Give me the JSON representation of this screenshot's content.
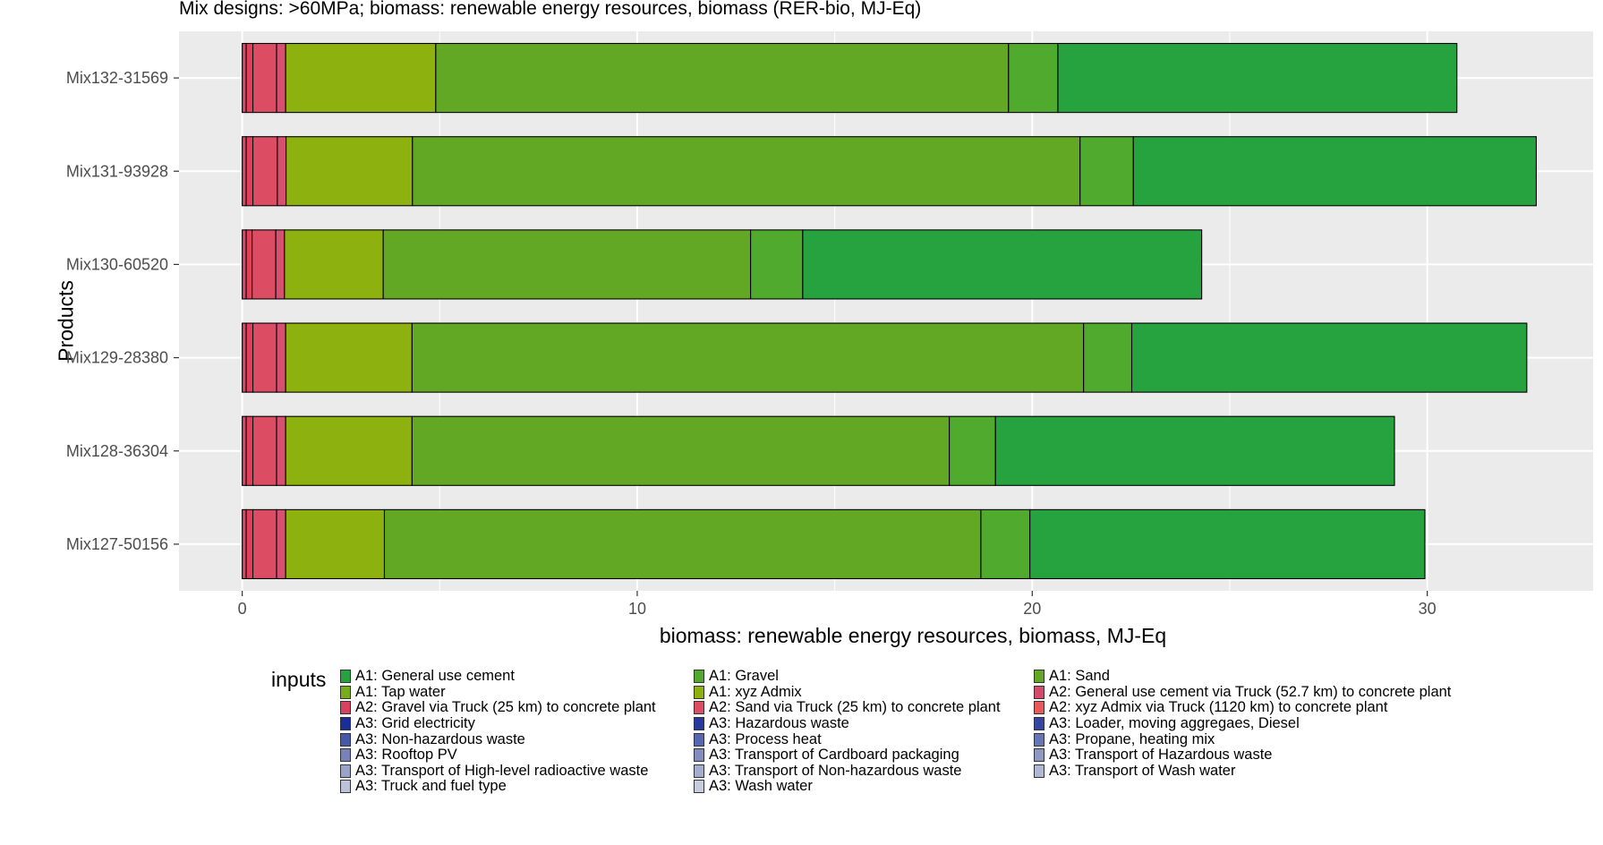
{
  "chart_data": {
    "type": "bar",
    "orientation": "horizontal",
    "stacked": true,
    "title": "Mix designs: >60MPa; biomass: renewable energy resources, biomass (RER-bio, MJ-Eq)",
    "xlabel": "biomass: renewable energy resources, biomass, MJ-Eq",
    "ylabel": "Products",
    "xlim": [
      -1.6,
      34.2
    ],
    "xticks": [
      0,
      10,
      20,
      30
    ],
    "categories": [
      "Mix132-31569",
      "Mix131-93928",
      "Mix130-60520",
      "Mix129-28380",
      "Mix128-36304",
      "Mix127-50156"
    ],
    "grid": true,
    "legend_position": "bottom",
    "legend_title": "inputs",
    "series": [
      {
        "name": "A2: General use cement via Truck (52.7 km) to concrete plant",
        "color": "#d44a6a",
        "values": [
          0.1,
          0.1,
          0.1,
          0.1,
          0.1,
          0.1
        ]
      },
      {
        "name": "A2: Gravel via Truck (25 km) to concrete plant",
        "color": "#e0405a",
        "values": [
          0.17,
          0.17,
          0.15,
          0.17,
          0.17,
          0.17
        ]
      },
      {
        "name": "A2: Sand via Truck (25 km) to concrete plant",
        "color": "#dc4d64",
        "values": [
          0.6,
          0.62,
          0.6,
          0.6,
          0.6,
          0.6
        ]
      },
      {
        "name": "A2: xyz Admix via Truck (1120 km) to concrete plant",
        "color": "#d85070",
        "values": [
          0.23,
          0.22,
          0.22,
          0.23,
          0.23,
          0.23
        ]
      },
      {
        "name": "A1: xyz Admix",
        "color": "#8db10e",
        "values": [
          3.8,
          3.2,
          2.5,
          3.2,
          3.2,
          2.5
        ]
      },
      {
        "name": "A1: Sand",
        "color": "#63a824",
        "values": [
          14.5,
          16.9,
          9.3,
          17.0,
          13.6,
          15.1
        ]
      },
      {
        "name": "A1: Tap water",
        "color": "#4faa2e",
        "values": [
          1.25,
          1.35,
          1.32,
          1.22,
          1.17,
          1.24
        ]
      },
      {
        "name": "A1: Gravel",
        "color": "#26a33f",
        "values": [
          10.1,
          10.2,
          10.1,
          10.0,
          10.1,
          10.0
        ]
      }
    ],
    "legend_items": [
      {
        "label": "A1: General use cement",
        "color": "#26a33f"
      },
      {
        "label": "A1: Gravel",
        "color": "#4faa2e"
      },
      {
        "label": "A1: Sand",
        "color": "#63a824"
      },
      {
        "label": "A1: Tap water",
        "color": "#77ad1a"
      },
      {
        "label": "A1: xyz Admix",
        "color": "#8db10e"
      },
      {
        "label": "A2: General use cement via Truck (52.7 km) to concrete plant",
        "color": "#d44a6a"
      },
      {
        "label": "A2: Gravel via Truck (25 km) to concrete plant",
        "color": "#d7435e"
      },
      {
        "label": "A2: Sand via Truck (25 km) to concrete plant",
        "color": "#dc4d64"
      },
      {
        "label": "A2: xyz Admix via Truck (1120 km) to concrete plant",
        "color": "#e85a5a"
      },
      {
        "label": "A3: Grid electricity",
        "color": "#1a2e9a"
      },
      {
        "label": "A3: Hazardous waste",
        "color": "#26399c"
      },
      {
        "label": "A3: Loader, moving aggregaes, Diesel",
        "color": "#3446a4"
      },
      {
        "label": "A3: Non-hazardous waste",
        "color": "#4558aa"
      },
      {
        "label": "A3: Process heat",
        "color": "#5667b1"
      },
      {
        "label": "A3: Propane, heating mix",
        "color": "#6575b6"
      },
      {
        "label": "A3: Rooftop PV",
        "color": "#7582bb"
      },
      {
        "label": "A3: Transport of Cardboard packaging",
        "color": "#818dbf"
      },
      {
        "label": "A3: Transport of Hazardous waste",
        "color": "#8e98c4"
      },
      {
        "label": "A3: Transport of High-level radioactive waste",
        "color": "#9aa3c9"
      },
      {
        "label": "A3: Transport of Non-hazardous waste",
        "color": "#a5adce"
      },
      {
        "label": "A3: Transport of Wash water",
        "color": "#b0b7d3"
      },
      {
        "label": "A3: Truck and fuel type",
        "color": "#bcc2d8"
      },
      {
        "label": "A3: Wash water",
        "color": "#c7ccdd"
      }
    ]
  }
}
